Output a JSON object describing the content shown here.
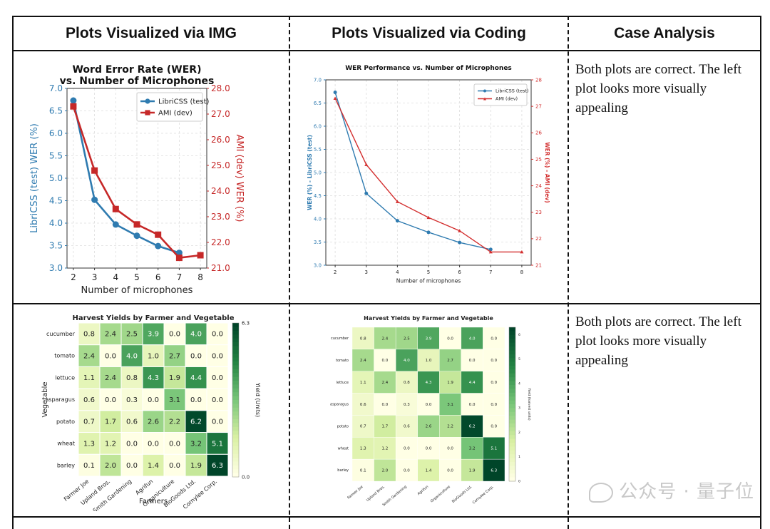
{
  "headers": {
    "col1": "Plots Visualized via IMG",
    "col2": "Plots Visualized via Coding",
    "col3": "Case Analysis"
  },
  "rows": [
    {
      "analysis": "Both plots are correct. The left plot looks more visually appealing"
    },
    {
      "analysis": "Both plots are correct. The left plot looks more visually appealing"
    }
  ],
  "watermark": "公众号 · 量子位",
  "chart_data": [
    {
      "id": "wer_img",
      "type": "line",
      "title": "Word Error Rate (WER)",
      "subtitle": "vs. Number of Microphones",
      "xlabel": "Number of microphones",
      "ylabel_left": "LibriCSS (test) WER (%)",
      "ylabel_right": "AMI (dev) WER (%)",
      "xlim": [
        1.7,
        8.3
      ],
      "x_ticks": [
        2,
        3,
        4,
        5,
        6,
        7,
        8
      ],
      "ylim_left": [
        3.0,
        7.0
      ],
      "y_ticks_left": [
        "3.0",
        "3.5",
        "4.0",
        "4.5",
        "5.0",
        "5.5",
        "6.0",
        "6.5",
        "7.0"
      ],
      "ylim_right": [
        21.0,
        28.0
      ],
      "y_ticks_right": [
        "21.0",
        "22.0",
        "23.0",
        "24.0",
        "25.0",
        "26.0",
        "27.0",
        "28.0"
      ],
      "grid": true,
      "legend_position": "top-right",
      "series": [
        {
          "name": "LibriCSS (test)",
          "axis": "left",
          "color": "#2f7bb0",
          "marker": "circle",
          "x": [
            2,
            3,
            4,
            5,
            6,
            7
          ],
          "y": [
            6.73,
            4.52,
            3.97,
            3.72,
            3.49,
            3.34
          ]
        },
        {
          "name": "AMI (dev)",
          "axis": "right",
          "color": "#c62828",
          "marker": "square",
          "x": [
            2,
            3,
            4,
            5,
            6,
            7,
            8
          ],
          "y": [
            27.3,
            24.8,
            23.3,
            22.7,
            22.3,
            21.4,
            21.5
          ]
        }
      ]
    },
    {
      "id": "wer_code",
      "type": "line",
      "title": "WER Performance vs. Number of Microphones",
      "xlabel": "Number of microphones",
      "ylabel_left": "WER (%) - LibriCSS (test)",
      "ylabel_right": "WER (%) - AMI (dev)",
      "xlim": [
        1.7,
        8.3
      ],
      "x_ticks": [
        2,
        3,
        4,
        5,
        6,
        7,
        8
      ],
      "ylim_left": [
        3.0,
        7.0
      ],
      "y_ticks_left": [
        "3.0",
        "3.5",
        "4.0",
        "4.5",
        "5.0",
        "5.5",
        "6.0",
        "6.5",
        "7.0"
      ],
      "ylim_right": [
        21.0,
        28.0
      ],
      "y_ticks_right": [
        "21",
        "22",
        "23",
        "24",
        "25",
        "26",
        "27",
        "28"
      ],
      "grid": true,
      "legend_position": "top-right",
      "series": [
        {
          "name": "LibriCSS (test)",
          "axis": "left",
          "color": "#2f7bb0",
          "marker": "circle",
          "x": [
            2,
            3,
            4,
            5,
            6,
            7
          ],
          "y": [
            6.73,
            4.55,
            3.96,
            3.71,
            3.49,
            3.34
          ]
        },
        {
          "name": "AMI (dev)",
          "axis": "right",
          "color": "#d32f2f",
          "marker": "triangle",
          "x": [
            2,
            3,
            4,
            5,
            6,
            7,
            8
          ],
          "y": [
            27.3,
            24.8,
            23.4,
            22.8,
            22.3,
            21.5,
            21.5
          ]
        }
      ]
    },
    {
      "id": "harvest_img",
      "type": "heatmap",
      "title": "Harvest Yields by Farmer and Vegetable",
      "xlabel": "Farmers",
      "ylabel": "Vegetable",
      "colorbar_label": "Yield (Units)",
      "colorbar_ticks": [
        "0.0",
        "6.3"
      ],
      "vmin": 0,
      "vmax": 6.3,
      "rows": [
        "cucumber",
        "tomato",
        "lettuce",
        "asparagus",
        "potato",
        "wheat",
        "barley"
      ],
      "cols": [
        "Farmer Joe",
        "Upland Bros.",
        "Smith Gardening",
        "Agrifun",
        "Organiculture",
        "BioGoods Ltd.",
        "Cornylee Corp."
      ],
      "values": [
        [
          0.8,
          2.4,
          2.5,
          3.9,
          0.0,
          4.0,
          0.0
        ],
        [
          2.4,
          0.0,
          4.0,
          1.0,
          2.7,
          0.0,
          0.0
        ],
        [
          1.1,
          2.4,
          0.8,
          4.3,
          1.9,
          4.4,
          0.0
        ],
        [
          0.6,
          0.0,
          0.3,
          0.0,
          3.1,
          0.0,
          0.0
        ],
        [
          0.7,
          1.7,
          0.6,
          2.6,
          2.2,
          6.2,
          0.0
        ],
        [
          1.3,
          1.2,
          0.0,
          0.0,
          0.0,
          3.2,
          5.1
        ],
        [
          0.1,
          2.0,
          0.0,
          1.4,
          0.0,
          1.9,
          6.3
        ]
      ]
    },
    {
      "id": "harvest_code",
      "type": "heatmap",
      "title": "Harvest Yields by Farmer and Vegetable",
      "colorbar_label": "Yield (harvest units)",
      "colorbar_ticks": [
        "0",
        "1",
        "2",
        "3",
        "4",
        "5",
        "6"
      ],
      "vmin": 0,
      "vmax": 6.3,
      "rows": [
        "cucumber",
        "tomato",
        "lettuce",
        "asparagus",
        "potato",
        "wheat",
        "barley"
      ],
      "cols": [
        "Farmer Joe",
        "Upland Bros.",
        "Smith Gardening",
        "Agrifun",
        "Organiculture",
        "BioGoods Ltd.",
        "Cornylee Corp."
      ],
      "values": [
        [
          0.8,
          2.4,
          2.5,
          3.9,
          0.0,
          4.0,
          0.0
        ],
        [
          2.4,
          0.0,
          4.0,
          1.0,
          2.7,
          0.0,
          0.0
        ],
        [
          1.1,
          2.4,
          0.8,
          4.3,
          1.9,
          4.4,
          0.0
        ],
        [
          0.6,
          0.0,
          0.3,
          0.0,
          3.1,
          0.0,
          0.0
        ],
        [
          0.7,
          1.7,
          0.6,
          2.6,
          2.2,
          6.2,
          0.0
        ],
        [
          1.3,
          1.2,
          0.0,
          0.0,
          0.0,
          3.2,
          5.1
        ],
        [
          0.1,
          2.0,
          0.0,
          1.4,
          0.0,
          1.9,
          6.3
        ]
      ]
    }
  ]
}
